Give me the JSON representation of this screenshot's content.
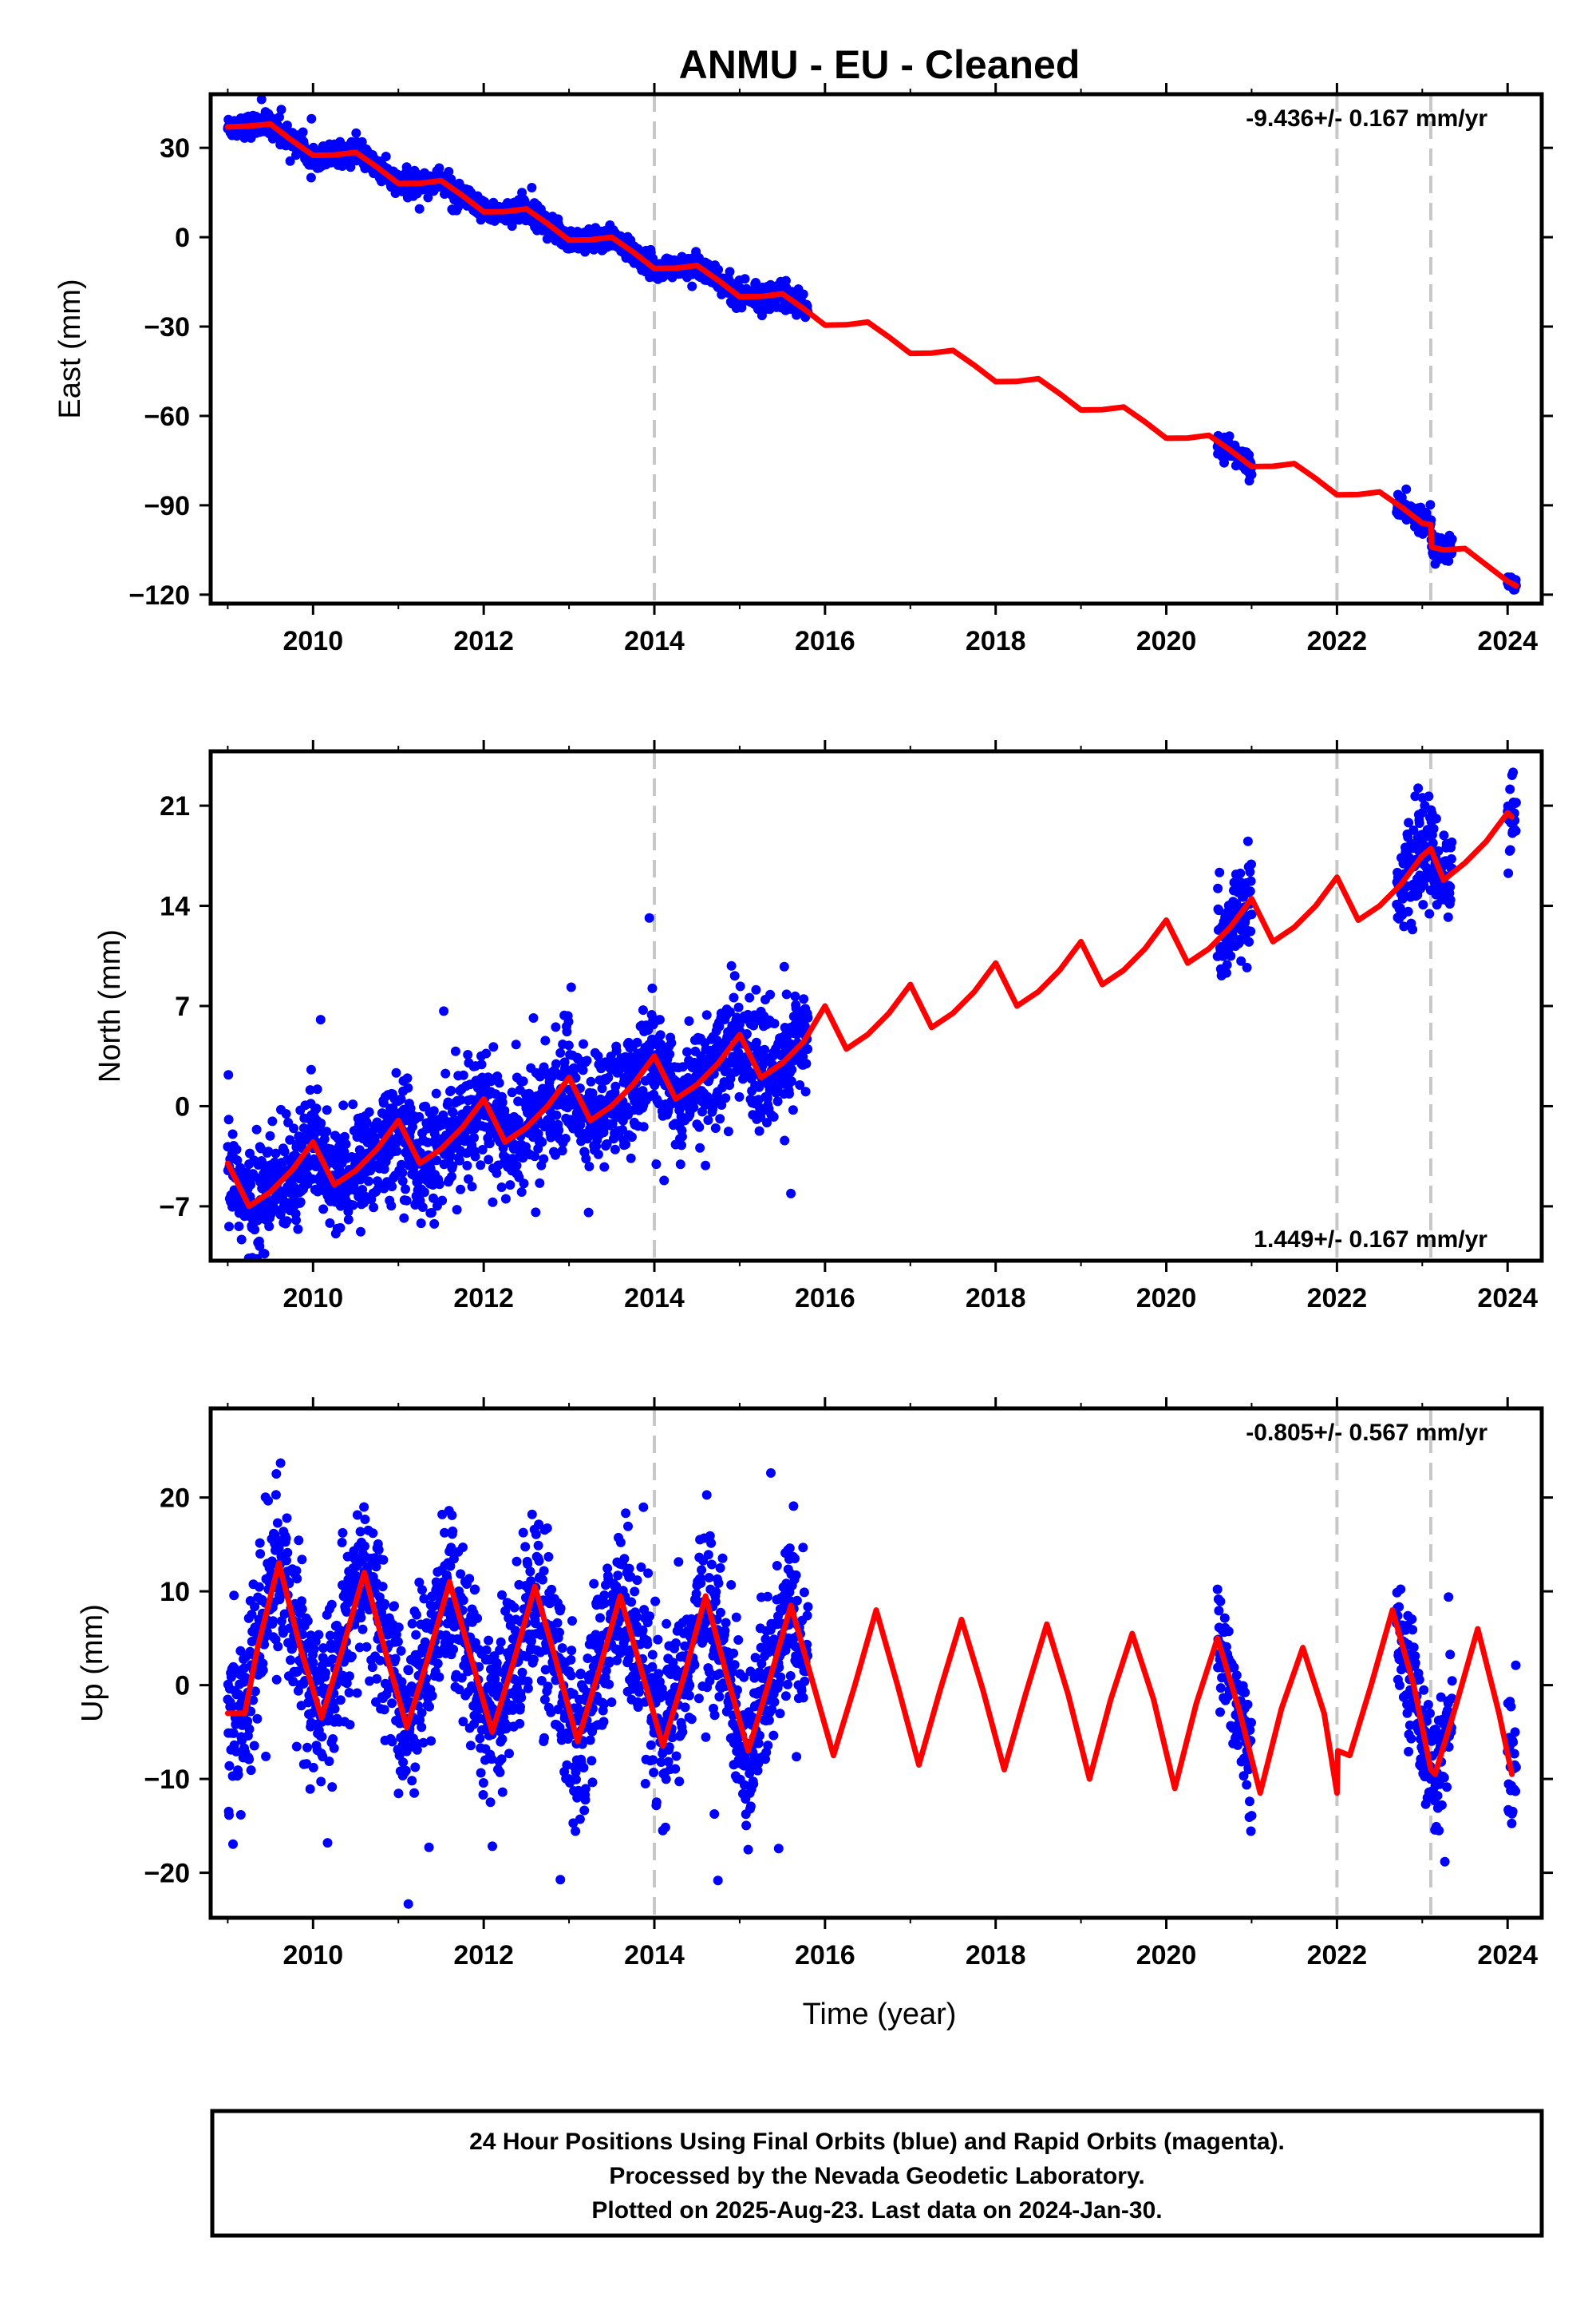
{
  "title": "ANMU  - EU - Cleaned",
  "xlabel": "Time (year)",
  "colors": {
    "data_final": "#0000ff",
    "data_rapid": "#ff00ff",
    "model": "#ff0000",
    "event_lines": "#c8c8c8",
    "frame": "#000000"
  },
  "footer": {
    "line1": "24 Hour Positions Using Final Orbits (blue) and Rapid Orbits (magenta).",
    "line2": "Processed by the Nevada Geodetic Laboratory.",
    "line3": "Plotted on 2025-Aug-23. Last data on 2024-Jan-30."
  },
  "chart_data": [
    {
      "type": "scatter",
      "component": "East",
      "ylabel": "East (mm)",
      "rate_label": "-9.436+/- 0.167 mm/yr",
      "rate_position": "top-right",
      "xlim": [
        2008.8,
        2024.4
      ],
      "ylim": [
        -123,
        48
      ],
      "xticks": [
        2010,
        2012,
        2014,
        2016,
        2018,
        2020,
        2022,
        2024
      ],
      "yticks": [
        30,
        0,
        -30,
        -60,
        -90,
        -120
      ],
      "event_lines": [
        2014.0,
        2022.0,
        2023.1
      ],
      "series": [
        {
          "kind": "model",
          "x": [
            2009.0,
            2009.25,
            2009.5,
            2009.75,
            2010.0,
            2010.25,
            2010.5,
            2010.75,
            2011.0,
            2011.25,
            2011.5,
            2011.75,
            2012.0,
            2012.25,
            2012.5,
            2012.75,
            2013.0,
            2013.25,
            2013.5,
            2013.75,
            2014.0,
            2014.25,
            2014.5,
            2014.75,
            2015.0,
            2015.25,
            2015.5,
            2015.75,
            2016.0,
            2016.25,
            2016.5,
            2016.75,
            2017.0,
            2017.25,
            2017.5,
            2017.75,
            2018.0,
            2018.25,
            2018.5,
            2018.75,
            2019.0,
            2019.25,
            2019.5,
            2019.75,
            2020.0,
            2020.25,
            2020.5,
            2020.75,
            2021.0,
            2021.25,
            2021.5,
            2021.75,
            2022.0,
            2022.25,
            2022.5,
            2022.75,
            2023.0,
            2023.1,
            2023.11,
            2023.25,
            2023.5,
            2023.75,
            2024.0,
            2024.1
          ],
          "y": [
            37,
            37.3,
            38,
            32.5,
            27.5,
            27.6,
            28.5,
            23.5,
            18,
            18.1,
            19,
            14,
            8.5,
            8.6,
            9.5,
            4.5,
            -1,
            -0.9,
            0,
            -5,
            -10.5,
            -10.4,
            -9.5,
            -14.5,
            -20,
            -19.9,
            -19,
            -24,
            -29.5,
            -29.4,
            -28.5,
            -33.5,
            -39,
            -38.9,
            -38,
            -43,
            -48.5,
            -48.4,
            -47.5,
            -52.5,
            -58,
            -57.9,
            -57,
            -62,
            -67.5,
            -67.4,
            -66.5,
            -71.5,
            -77,
            -76.9,
            -76,
            -81,
            -86.5,
            -86.4,
            -85.5,
            -90.5,
            -96,
            -96.5,
            -104,
            -105,
            -104.5,
            -110,
            -115.5,
            -117
          ]
        },
        {
          "kind": "data",
          "segments": [
            {
              "x0": 2009.0,
              "x1": 2015.8,
              "noise": 1.8
            },
            {
              "x0": 2020.6,
              "x1": 2021.0,
              "noise": 1.8
            },
            {
              "x0": 2022.7,
              "x1": 2023.35,
              "noise": 1.8
            },
            {
              "x0": 2024.0,
              "x1": 2024.1,
              "noise": 1.2
            }
          ]
        }
      ]
    },
    {
      "type": "scatter",
      "component": "North",
      "ylabel": "North (mm)",
      "rate_label": "1.449+/- 0.167 mm/yr",
      "rate_position": "bottom-right",
      "xlim": [
        2008.8,
        2024.4
      ],
      "ylim": [
        -10.8,
        24.8
      ],
      "xticks": [
        2010,
        2012,
        2014,
        2016,
        2018,
        2020,
        2022,
        2024
      ],
      "yticks": [
        21,
        14,
        7,
        0,
        -7
      ],
      "event_lines": [
        2014.0,
        2022.0,
        2023.1
      ],
      "series": [
        {
          "kind": "model",
          "x": [
            2009.0,
            2009.25,
            2009.5,
            2009.75,
            2010.0,
            2010.25,
            2010.5,
            2010.75,
            2011.0,
            2011.25,
            2011.5,
            2011.75,
            2012.0,
            2012.25,
            2012.5,
            2012.75,
            2013.0,
            2013.25,
            2013.5,
            2013.75,
            2014.0,
            2014.25,
            2014.5,
            2014.75,
            2015.0,
            2015.25,
            2015.5,
            2015.75,
            2016.0,
            2016.25,
            2016.5,
            2016.75,
            2017.0,
            2017.25,
            2017.5,
            2017.75,
            2018.0,
            2018.25,
            2018.5,
            2018.75,
            2019.0,
            2019.25,
            2019.5,
            2019.75,
            2020.0,
            2020.25,
            2020.5,
            2020.75,
            2021.0,
            2021.25,
            2021.5,
            2021.75,
            2022.0,
            2022.25,
            2022.5,
            2022.75,
            2023.0,
            2023.1,
            2023.25,
            2023.5,
            2023.75,
            2024.0,
            2024.05
          ],
          "y": [
            -4,
            -7,
            -6,
            -4.5,
            -2.5,
            -5.5,
            -4.5,
            -3,
            -1,
            -4,
            -3,
            -1.5,
            0.5,
            -2.5,
            -1.5,
            0,
            2,
            -1,
            0,
            1.5,
            3.5,
            0.5,
            1.5,
            3,
            5,
            2,
            3,
            4.5,
            7,
            4,
            5,
            6.5,
            8.5,
            5.5,
            6.5,
            8,
            10,
            7,
            8,
            9.5,
            11.5,
            8.5,
            9.5,
            11,
            13,
            10,
            11,
            12.5,
            14.5,
            11.5,
            12.5,
            14,
            16,
            13,
            14,
            15.5,
            17.5,
            18,
            15.8,
            17,
            18.5,
            20.5,
            20.2
          ]
        },
        {
          "kind": "data",
          "segments": [
            {
              "x0": 2009.0,
              "x1": 2015.8,
              "noise": 2.0
            },
            {
              "x0": 2020.6,
              "x1": 2021.0,
              "noise": 1.6
            },
            {
              "x0": 2022.7,
              "x1": 2023.35,
              "noise": 1.6
            },
            {
              "x0": 2024.0,
              "x1": 2024.1,
              "noise": 1.8
            }
          ]
        }
      ]
    },
    {
      "type": "scatter",
      "component": "Up",
      "ylabel": "Up (mm)",
      "rate_label": "-0.805+/- 0.567 mm/yr",
      "rate_position": "top-right",
      "xlim": [
        2008.8,
        2024.4
      ],
      "ylim": [
        -24.8,
        29.5
      ],
      "xticks": [
        2010,
        2012,
        2014,
        2016,
        2018,
        2020,
        2022,
        2024
      ],
      "yticks": [
        20,
        10,
        0,
        -10,
        -20
      ],
      "event_lines": [
        2014.0,
        2022.0,
        2023.1
      ],
      "series": [
        {
          "kind": "model",
          "x": [
            2009.0,
            2009.2,
            2009.35,
            2009.6,
            2009.85,
            2010.1,
            2010.35,
            2010.6,
            2010.85,
            2011.1,
            2011.35,
            2011.6,
            2011.85,
            2012.1,
            2012.35,
            2012.6,
            2012.85,
            2013.1,
            2013.35,
            2013.6,
            2013.85,
            2014.1,
            2014.35,
            2014.6,
            2014.85,
            2015.1,
            2015.35,
            2015.6,
            2015.85,
            2016.1,
            2016.35,
            2016.6,
            2016.85,
            2017.1,
            2017.35,
            2017.6,
            2017.85,
            2018.1,
            2018.35,
            2018.6,
            2018.85,
            2019.1,
            2019.35,
            2019.6,
            2019.85,
            2020.1,
            2020.35,
            2020.6,
            2020.85,
            2021.1,
            2021.35,
            2021.6,
            2021.85,
            2022.0,
            2022.01,
            2022.15,
            2022.4,
            2022.65,
            2022.9,
            2023.1,
            2023.15,
            2023.4,
            2023.65,
            2023.9,
            2024.05
          ],
          "y": [
            -3,
            -3,
            4,
            13,
            4,
            -3.5,
            4,
            12,
            3.5,
            -4.5,
            3,
            11,
            3,
            -5,
            2.5,
            10.5,
            2.5,
            -6,
            1.5,
            9.5,
            1.5,
            -6.5,
            1,
            9.5,
            1,
            -7,
            0.5,
            8.5,
            0.5,
            -7.5,
            0,
            8,
            0,
            -8.5,
            -0.5,
            7,
            -0.5,
            -9,
            -1,
            6.5,
            -1,
            -10,
            -1.5,
            5.5,
            -1.5,
            -11,
            -2,
            5,
            -2.5,
            -11.5,
            -2.5,
            4,
            -3,
            -11.5,
            -7,
            -7.5,
            0,
            8,
            0,
            -9,
            -9.5,
            -2,
            6,
            -3,
            -9.5
          ]
        },
        {
          "kind": "data",
          "segments": [
            {
              "x0": 2009.0,
              "x1": 2015.8,
              "noise": 4.5
            },
            {
              "x0": 2020.6,
              "x1": 2021.0,
              "noise": 3.0
            },
            {
              "x0": 2022.7,
              "x1": 2023.35,
              "noise": 3.0
            },
            {
              "x0": 2024.0,
              "x1": 2024.1,
              "noise": 4.0
            }
          ]
        }
      ]
    }
  ]
}
